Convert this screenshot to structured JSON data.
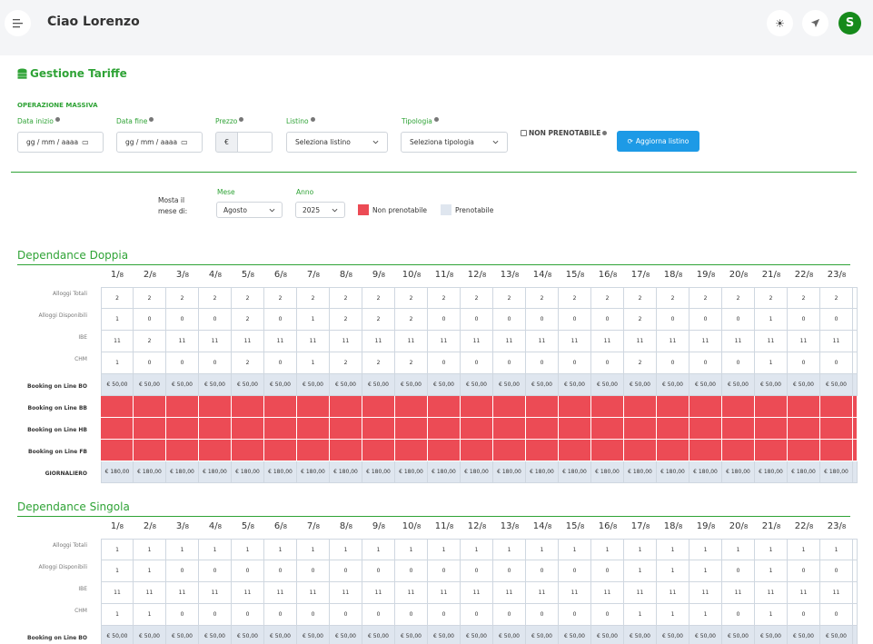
{
  "header": {
    "welcome": "Ciao Lorenzo",
    "avatar_letter": "S",
    "icons": [
      "menu-icon",
      "sun-icon",
      "send-icon"
    ]
  },
  "page": {
    "title": "Gestione Tariffe",
    "bulk_section": "OPERAZIONE MASSIVA",
    "fields": {
      "start_label": "Data inizio",
      "start_value": "gg / mm / aaaa",
      "end_label": "Data fine",
      "end_value": "gg / mm / aaaa",
      "price_label": "Prezzo",
      "price_prefix": "€",
      "list_label": "Listino",
      "list_value": "Seleziona listino",
      "type_label": "Tipologia",
      "type_value": "Seleziona tipologia",
      "non_bookable_label": "NON PRENOTABILE",
      "update_button": "Aggiorna listino"
    },
    "filter": {
      "show_label_1": "Mosta il",
      "show_label_2": "mese di:",
      "month_label": "Mese",
      "month_value": "Agosto",
      "year_label": "Anno",
      "year_value": "2025",
      "legend_non": "Non prenotabile",
      "legend_yes": "Prenotabile",
      "color_non": "#ec4b55",
      "color_yes": "#dfe6ef"
    }
  },
  "days": [
    "1",
    "2",
    "3",
    "4",
    "5",
    "6",
    "7",
    "8",
    "9",
    "10",
    "11",
    "12",
    "13",
    "14",
    "15",
    "16",
    "17",
    "18",
    "19",
    "20",
    "21",
    "22",
    "23"
  ],
  "month_num": "8",
  "groups": [
    {
      "title": "Dependance Doppia",
      "rows": [
        {
          "label": "Alloggi Totali",
          "kind": "num",
          "values": [
            "2",
            "2",
            "2",
            "2",
            "2",
            "2",
            "2",
            "2",
            "2",
            "2",
            "2",
            "2",
            "2",
            "2",
            "2",
            "2",
            "2",
            "2",
            "2",
            "2",
            "2",
            "2",
            "2"
          ]
        },
        {
          "label": "Alloggi Disponibili",
          "kind": "num",
          "values": [
            "1",
            "0",
            "0",
            "0",
            "2",
            "0",
            "1",
            "2",
            "2",
            "2",
            "0",
            "0",
            "0",
            "0",
            "0",
            "0",
            "2",
            "0",
            "0",
            "0",
            "1",
            "0",
            "0"
          ]
        },
        {
          "label": "IBE",
          "kind": "num",
          "values": [
            "11",
            "2",
            "11",
            "11",
            "11",
            "11",
            "11",
            "11",
            "11",
            "11",
            "11",
            "11",
            "11",
            "11",
            "11",
            "11",
            "11",
            "11",
            "11",
            "11",
            "11",
            "11",
            "11"
          ]
        },
        {
          "label": "CHM",
          "kind": "num",
          "values": [
            "1",
            "0",
            "0",
            "0",
            "2",
            "0",
            "1",
            "2",
            "2",
            "2",
            "0",
            "0",
            "0",
            "0",
            "0",
            "0",
            "2",
            "0",
            "0",
            "0",
            "1",
            "0",
            "0"
          ]
        },
        {
          "label": "Booking on Line BO",
          "kind": "price",
          "value": "€ 50,00"
        },
        {
          "label": "Booking on Line BB",
          "kind": "red"
        },
        {
          "label": "Booking on Line HB",
          "kind": "red"
        },
        {
          "label": "Booking on Line FB",
          "kind": "red"
        },
        {
          "label": "GIORNALIERO",
          "kind": "price",
          "value": "€ 180,00"
        }
      ]
    },
    {
      "title": "Dependance Singola",
      "rows": [
        {
          "label": "Alloggi Totali",
          "kind": "num",
          "values": [
            "1",
            "1",
            "1",
            "1",
            "1",
            "1",
            "1",
            "1",
            "1",
            "1",
            "1",
            "1",
            "1",
            "1",
            "1",
            "1",
            "1",
            "1",
            "1",
            "1",
            "1",
            "1",
            "1"
          ]
        },
        {
          "label": "Alloggi Disponibili",
          "kind": "num",
          "values": [
            "1",
            "1",
            "0",
            "0",
            "0",
            "0",
            "0",
            "0",
            "0",
            "0",
            "0",
            "0",
            "0",
            "0",
            "0",
            "0",
            "1",
            "1",
            "1",
            "0",
            "1",
            "0",
            "0"
          ]
        },
        {
          "label": "IBE",
          "kind": "num",
          "values": [
            "11",
            "11",
            "11",
            "11",
            "11",
            "11",
            "11",
            "11",
            "11",
            "11",
            "11",
            "11",
            "11",
            "11",
            "11",
            "11",
            "11",
            "11",
            "11",
            "11",
            "11",
            "11",
            "11"
          ]
        },
        {
          "label": "CHM",
          "kind": "num",
          "values": [
            "1",
            "1",
            "0",
            "0",
            "0",
            "0",
            "0",
            "0",
            "0",
            "0",
            "0",
            "0",
            "0",
            "0",
            "0",
            "0",
            "1",
            "1",
            "1",
            "0",
            "1",
            "0",
            "0"
          ]
        },
        {
          "label": "Booking on Line BO",
          "kind": "price",
          "value": "€ 50,00"
        }
      ]
    }
  ]
}
